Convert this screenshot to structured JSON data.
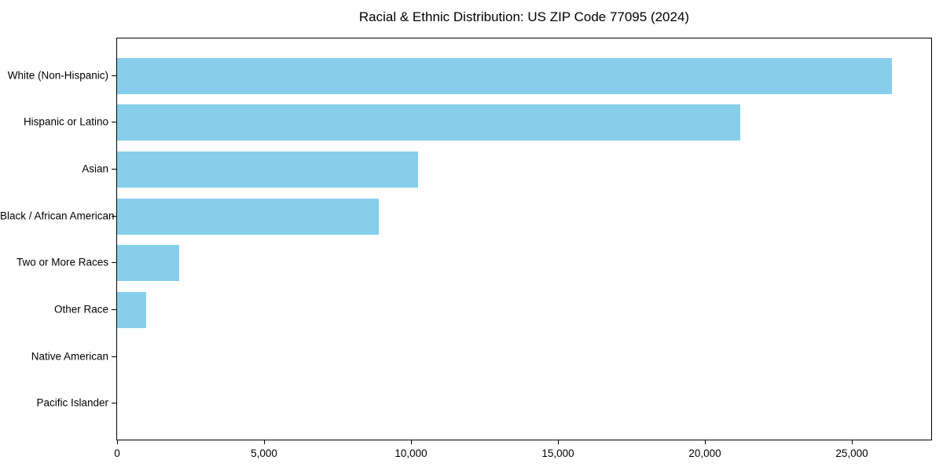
{
  "chart_data": {
    "type": "bar",
    "orientation": "horizontal",
    "title": "Racial & Ethnic Distribution: US ZIP Code 77095 (2024)",
    "categories": [
      "White (Non-Hispanic)",
      "Hispanic or Latino",
      "Asian",
      "Black / African American",
      "Two or More Races",
      "Other Race",
      "Native American",
      "Pacific Islander"
    ],
    "values": [
      26350,
      21200,
      10250,
      8900,
      2120,
      990,
      0,
      0
    ],
    "bar_color": "#87CEEB",
    "background_color": "#ffffff",
    "text_color": "#000000",
    "xlabel": "",
    "ylabel": "",
    "xlim": [
      0,
      27700
    ],
    "x_tick_values": [
      0,
      5000,
      10000,
      15000,
      20000,
      25000
    ],
    "x_tick_labels": [
      "0",
      "5,000",
      "10,000",
      "15,000",
      "20,000",
      "25,000"
    ],
    "grid": false,
    "legend": null,
    "frame": "full-box"
  }
}
